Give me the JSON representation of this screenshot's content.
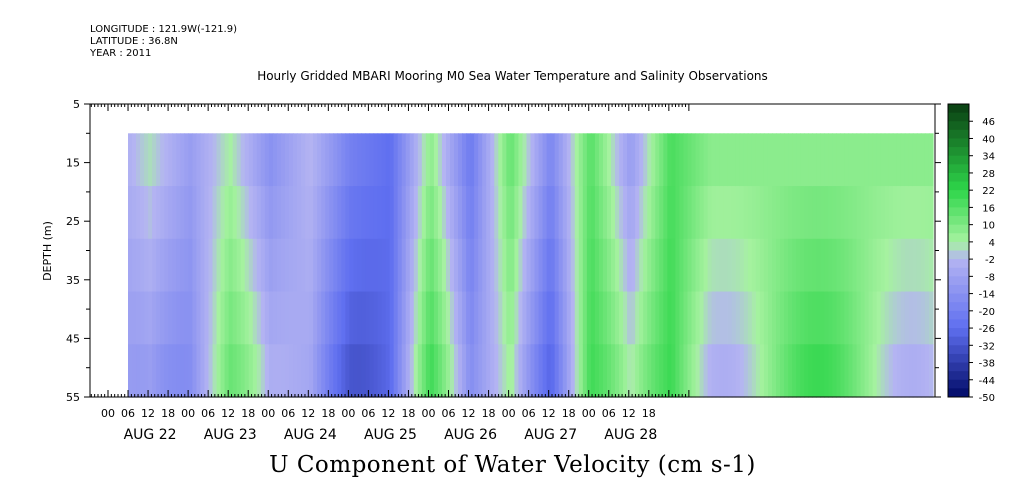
{
  "header": {
    "longitude": "LONGITUDE : 121.9W(-121.9)",
    "latitude": "LATITUDE : 36.8N",
    "year": "YEAR : 2011"
  },
  "title": "Hourly Gridded MBARI Mooring M0 Sea Water Temperature and Salinity Observations",
  "variable_title": "U Component of Water Velocity (cm s-1)",
  "chart_data": {
    "type": "heatmap",
    "title": "Hourly Gridded MBARI Mooring M0 Sea Water Temperature and Salinity Observations",
    "xlabel": "",
    "ylabel": "DEPTH (m)",
    "y_ticks": [
      5,
      15,
      25,
      35,
      45,
      55
    ],
    "ylim": [
      55,
      5
    ],
    "data_depth_range": [
      10,
      55
    ],
    "x_hour_ticks": [
      "00",
      "06",
      "12",
      "18",
      "00",
      "06",
      "12",
      "18",
      "00",
      "06",
      "12",
      "18",
      "00",
      "06",
      "12",
      "18",
      "00",
      "06",
      "12",
      "18",
      "00",
      "06",
      "12",
      "18",
      "00",
      "06",
      "12",
      "18"
    ],
    "x_day_labels": [
      "AUG 22",
      "AUG 23",
      "AUG 24",
      "AUG 25",
      "AUG 26",
      "AUG 27",
      "AUG 28"
    ],
    "colorbar_labels": [
      46,
      40,
      34,
      28,
      22,
      16,
      10,
      4,
      -2,
      -8,
      -14,
      -20,
      -26,
      -32,
      -38,
      -44,
      -50
    ],
    "colorbar_range": [
      -50,
      52
    ],
    "colors": {
      "max_green": "#0a3d12",
      "mid_green": "#2ed64a",
      "light_green": "#a6f2a0",
      "light_blue": "#b4b4f2",
      "mid_blue": "#5f6ff0",
      "dark_blue": "#000a66"
    },
    "velocity_pattern_hours": [
      0,
      12,
      24,
      36,
      48,
      60,
      72,
      84,
      96,
      108,
      120,
      132,
      144,
      156,
      168,
      180
    ],
    "velocity_pattern_values": [
      -8,
      2,
      -10,
      4,
      -14,
      -2,
      -20,
      -26,
      8,
      -22,
      14,
      -18,
      16,
      -10,
      18,
      8
    ]
  }
}
